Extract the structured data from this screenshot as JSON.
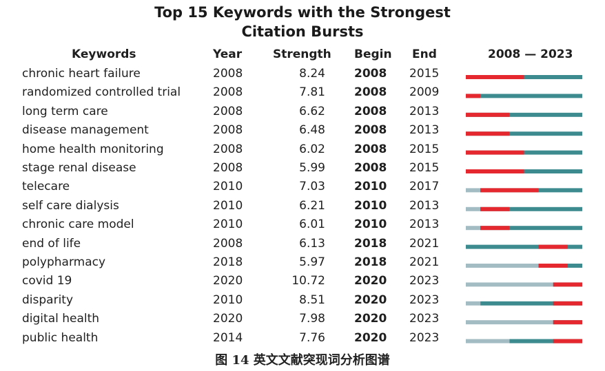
{
  "chart_data": {
    "type": "table",
    "title": "Top 15 Keywords with the Strongest Citation Bursts",
    "title_lines": [
      "Top 15 Keywords with the Strongest",
      "Citation Bursts"
    ],
    "headers": {
      "keywords": "Keywords",
      "year": "Year",
      "strength": "Strength",
      "begin": "Begin",
      "end": "End",
      "range": "2008 — 2023"
    },
    "range_start": 2008,
    "range_end": 2023,
    "colors": {
      "inactive": "#a3bcc3",
      "active": "#3d8a8f",
      "burst": "#e5282f"
    },
    "rows": [
      {
        "keyword": "chronic heart failure",
        "year": "2008",
        "strength": "8.24",
        "begin": "2008",
        "end": "2015"
      },
      {
        "keyword": "randomized controlled trial",
        "year": "2008",
        "strength": "7.81",
        "begin": "2008",
        "end": "2009"
      },
      {
        "keyword": "long term care",
        "year": "2008",
        "strength": "6.62",
        "begin": "2008",
        "end": "2013"
      },
      {
        "keyword": "disease management",
        "year": "2008",
        "strength": "6.48",
        "begin": "2008",
        "end": "2013"
      },
      {
        "keyword": "home health monitoring",
        "year": "2008",
        "strength": "6.02",
        "begin": "2008",
        "end": "2015"
      },
      {
        "keyword": "stage renal disease",
        "year": "2008",
        "strength": "5.99",
        "begin": "2008",
        "end": "2015"
      },
      {
        "keyword": "telecare",
        "year": "2010",
        "strength": "7.03",
        "begin": "2010",
        "end": "2017"
      },
      {
        "keyword": "self care dialysis",
        "year": "2010",
        "strength": "6.21",
        "begin": "2010",
        "end": "2013"
      },
      {
        "keyword": "chronic care model",
        "year": "2010",
        "strength": "6.01",
        "begin": "2010",
        "end": "2013"
      },
      {
        "keyword": "end of life",
        "year": "2008",
        "strength": "6.13",
        "begin": "2018",
        "end": "2021"
      },
      {
        "keyword": "polypharmacy",
        "year": "2018",
        "strength": "5.97",
        "begin": "2018",
        "end": "2021"
      },
      {
        "keyword": "covid 19",
        "year": "2020",
        "strength": "10.72",
        "begin": "2020",
        "end": "2023"
      },
      {
        "keyword": "disparity",
        "year": "2010",
        "strength": "8.51",
        "begin": "2020",
        "end": "2023"
      },
      {
        "keyword": "digital health",
        "year": "2020",
        "strength": "7.98",
        "begin": "2020",
        "end": "2023"
      },
      {
        "keyword": "public health",
        "year": "2014",
        "strength": "7.76",
        "begin": "2020",
        "end": "2023"
      }
    ]
  },
  "caption": "图 14   英文文献突现词分析图谱"
}
